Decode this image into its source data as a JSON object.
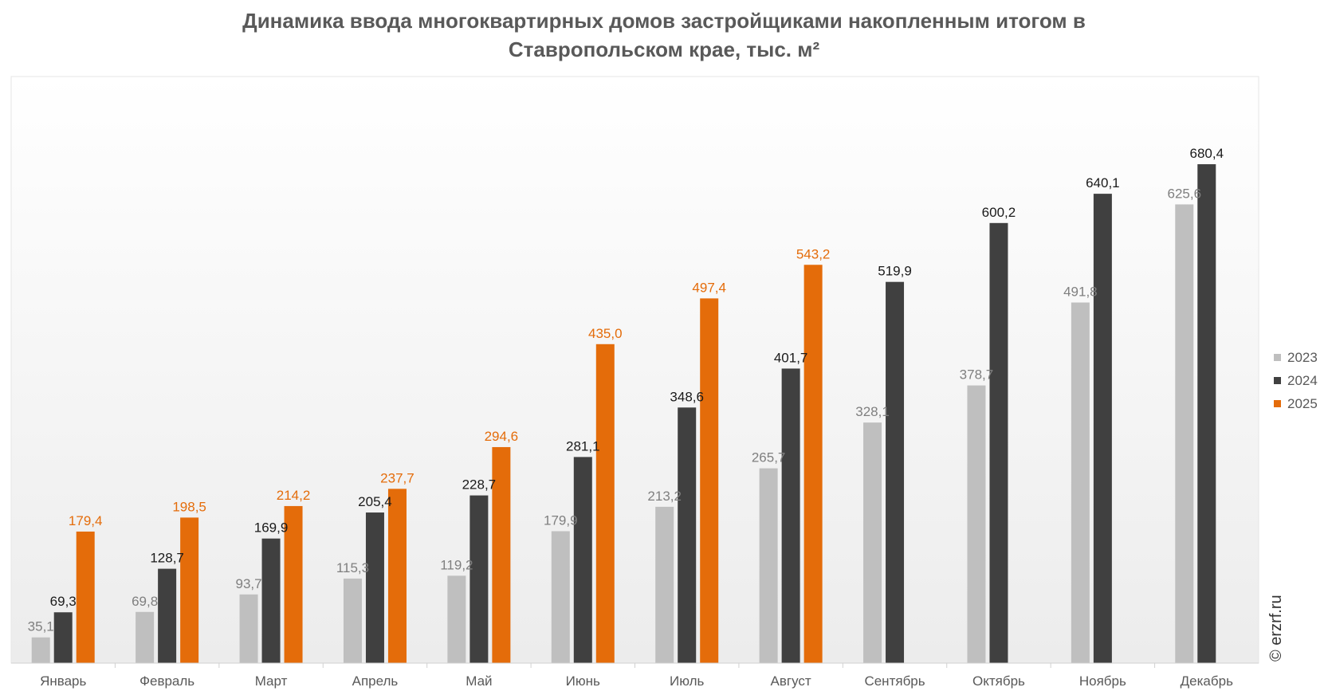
{
  "chart_data": {
    "type": "bar",
    "title": "Динамика ввода многоквартирных домов застройщиками накопленным итогом в Ставропольском крае, тыс. м²",
    "title_lines": [
      "Динамика ввода многоквартирных домов застройщиками накопленным итогом в",
      "Ставропольском крае, тыс. м²"
    ],
    "categories": [
      "Январь",
      "Февраль",
      "Март",
      "Апрель",
      "Май",
      "Июнь",
      "Июль",
      "Август",
      "Сентябрь",
      "Октябрь",
      "Ноябрь",
      "Декабрь"
    ],
    "series": [
      {
        "name": "2023",
        "color": "#bfbfbf",
        "label_color": "#7f7f7f",
        "values": [
          35.1,
          69.8,
          93.7,
          115.3,
          119.2,
          179.9,
          213.2,
          265.7,
          328.1,
          378.7,
          491.8,
          625.6
        ]
      },
      {
        "name": "2024",
        "color": "#404040",
        "label_color": "#1a1a1a",
        "values": [
          69.3,
          128.7,
          169.9,
          205.4,
          228.7,
          281.1,
          348.6,
          401.7,
          519.9,
          600.2,
          640.1,
          680.4
        ]
      },
      {
        "name": "2025",
        "color": "#e46c0a",
        "label_color": "#e46c0a",
        "values": [
          179.4,
          198.5,
          214.2,
          237.7,
          294.6,
          435.0,
          497.4,
          543.2,
          null,
          null,
          null,
          null
        ]
      }
    ],
    "ylim": [
      0,
      800
    ],
    "xlabel": "",
    "ylabel": "",
    "grid": false,
    "legend_position": "right",
    "decimal_separator": ","
  },
  "watermark": "© erzrf.ru"
}
